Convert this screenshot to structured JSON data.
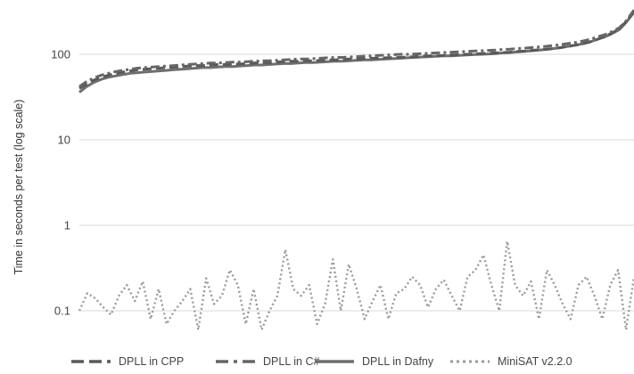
{
  "chart_data": {
    "type": "line",
    "title": "",
    "xlabel": "",
    "ylabel": "Time in seconds per test (log scale)",
    "yscale": "log",
    "ylim": [
      0.05,
      400
    ],
    "y_ticks": [
      {
        "value": 100,
        "label": "100"
      },
      {
        "value": 10,
        "label": "10"
      },
      {
        "value": 1,
        "label": "1"
      },
      {
        "value": 0.1,
        "label": "0.1"
      }
    ],
    "grid": true,
    "legend_position": "bottom",
    "series": [
      {
        "name": "DPLL in CPP",
        "color": "#595959",
        "dash": "long-dash",
        "values": [
          40,
          45,
          50,
          54,
          57,
          60,
          62,
          64,
          66,
          67,
          68,
          69,
          70,
          71,
          72,
          73,
          74,
          74,
          75,
          76,
          76,
          77,
          77,
          78,
          79,
          80,
          80,
          81,
          82,
          83,
          83,
          84,
          84,
          85,
          86,
          86,
          87,
          88,
          88,
          89,
          90,
          90,
          91,
          92,
          92,
          93,
          94,
          95,
          96,
          96,
          97,
          98,
          99,
          100,
          101,
          102,
          103,
          104,
          105,
          106,
          108,
          109,
          111,
          113,
          115,
          117,
          120,
          124,
          128,
          133,
          140,
          150,
          162,
          178,
          200,
          245,
          320
        ]
      },
      {
        "name": "DPLL in C#",
        "color": "#666666",
        "dash": "dash-dot",
        "values": [
          42,
          48,
          53,
          57,
          60,
          63,
          65,
          67,
          69,
          70,
          71,
          72,
          73,
          74,
          75,
          76,
          77,
          78,
          79,
          79,
          80,
          81,
          81,
          82,
          83,
          84,
          84,
          85,
          86,
          87,
          88,
          88,
          89,
          90,
          91,
          92,
          92,
          93,
          94,
          95,
          96,
          97,
          98,
          99,
          100,
          100,
          101,
          102,
          103,
          104,
          105,
          106,
          107,
          108,
          109,
          110,
          111,
          112,
          114,
          115,
          117,
          118,
          120,
          122,
          124,
          127,
          130,
          134,
          138,
          143,
          150,
          160,
          170,
          185,
          205,
          250,
          330
        ]
      },
      {
        "name": "DPLL in Dafny",
        "color": "#6e6e6e",
        "dash": "solid",
        "values": [
          36,
          42,
          47,
          51,
          54,
          56,
          58,
          60,
          61,
          62,
          63,
          64,
          65,
          66,
          67,
          68,
          69,
          70,
          70,
          71,
          72,
          72,
          73,
          74,
          75,
          75,
          76,
          77,
          78,
          78,
          79,
          80,
          80,
          81,
          82,
          83,
          83,
          84,
          85,
          86,
          86,
          87,
          88,
          89,
          90,
          91,
          92,
          93,
          94,
          95,
          96,
          96,
          97,
          98,
          99,
          100,
          101,
          102,
          104,
          105,
          107,
          108,
          110,
          112,
          114,
          117,
          120,
          124,
          128,
          133,
          140,
          150,
          160,
          175,
          195,
          240,
          310
        ]
      },
      {
        "name": "MiniSAT v2.2.0",
        "color": "#9a9a9a",
        "dash": "dotted",
        "values": [
          0.1,
          0.16,
          0.14,
          0.11,
          0.09,
          0.15,
          0.2,
          0.13,
          0.22,
          0.08,
          0.18,
          0.07,
          0.1,
          0.13,
          0.18,
          0.06,
          0.24,
          0.12,
          0.15,
          0.3,
          0.2,
          0.07,
          0.18,
          0.06,
          0.1,
          0.15,
          0.52,
          0.18,
          0.15,
          0.2,
          0.07,
          0.12,
          0.4,
          0.1,
          0.35,
          0.18,
          0.08,
          0.13,
          0.2,
          0.08,
          0.16,
          0.18,
          0.25,
          0.2,
          0.11,
          0.18,
          0.23,
          0.15,
          0.1,
          0.25,
          0.3,
          0.45,
          0.2,
          0.1,
          0.65,
          0.2,
          0.15,
          0.22,
          0.08,
          0.3,
          0.2,
          0.12,
          0.08,
          0.2,
          0.25,
          0.15,
          0.08,
          0.2,
          0.3,
          0.06,
          0.25
        ]
      }
    ]
  }
}
